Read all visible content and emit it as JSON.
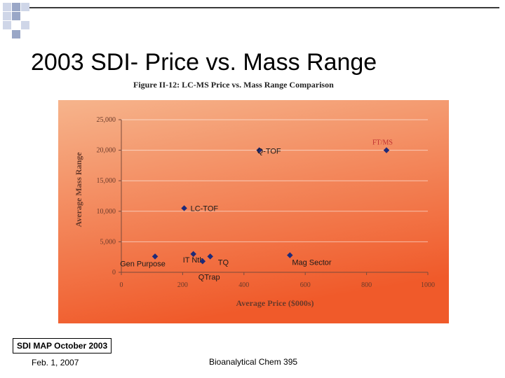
{
  "slide": {
    "title": "2003 SDI- Price vs. Mass Range",
    "tag": "SDI MAP October 2003",
    "footer_date": "Feb. 1, 2007",
    "footer_course": "Bioanalytical Chem 395"
  },
  "colors": {
    "deco_square_light": "#cfd6e8",
    "deco_square_dark": "#9aa7c7",
    "rule": "#3a3a3a",
    "panel_top": "#f6b48c",
    "panel_bottom": "#f05a2a",
    "marker": "#1f2a78",
    "axis_text": "#6a3a2a",
    "ftms_label": "#c03030"
  },
  "chart_data": {
    "type": "scatter",
    "title": "Figure II-12: LC-MS Price vs. Mass Range Comparison",
    "xlabel": "Average Price ($000s)",
    "ylabel": "Average Mass Range",
    "xlim": [
      0,
      1000
    ],
    "ylim": [
      0,
      25000
    ],
    "xticks": [
      "0",
      "200",
      "400",
      "600",
      "800",
      "1000"
    ],
    "yticks": [
      "0",
      "5,000",
      "10,000",
      "15,000",
      "20,000",
      "25,000"
    ],
    "grid": "horizontal",
    "points": [
      {
        "label": "Gen Purpose",
        "x": 110,
        "y": 2600
      },
      {
        "label": "IT Nth",
        "x": 235,
        "y": 3000
      },
      {
        "label": "QTrap",
        "x": 265,
        "y": 1800
      },
      {
        "label": "TQ",
        "x": 290,
        "y": 2600
      },
      {
        "label": "LC-TOF",
        "x": 205,
        "y": 10500
      },
      {
        "label": "Q-TOF",
        "x": 450,
        "y": 20000
      },
      {
        "label": "Mag Sector",
        "x": 550,
        "y": 2800
      },
      {
        "label": "FT/MS",
        "x": 865,
        "y": 20000
      }
    ]
  }
}
